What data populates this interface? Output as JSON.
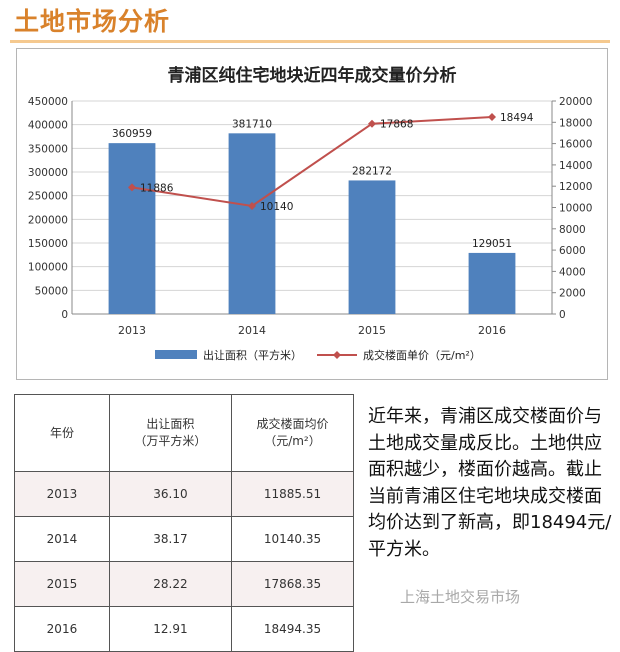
{
  "page": {
    "title": "土地市场分析",
    "note": "近年来，青浦区成交楼面价与土地成交量成反比。土地供应面积越少，楼面价越高。截止当前青浦区住宅地块成交楼面均价达到了新高，即18494元/平方米。",
    "watermark": "上海土地交易市场"
  },
  "chart_data": {
    "type": "bar",
    "title": "青浦区纯住宅地块近四年成交量价分析",
    "categories": [
      "2013",
      "2014",
      "2015",
      "2016"
    ],
    "series": [
      {
        "name": "出让面积（平方米）",
        "type": "bar",
        "axis": "left",
        "color": "#4f81bd",
        "values": [
          360959,
          381710,
          282172,
          129051
        ],
        "labels": [
          "360959",
          "381710",
          "282172",
          "129051"
        ]
      },
      {
        "name": "成交楼面单价（元/m²）",
        "type": "line",
        "axis": "right",
        "color": "#c0504d",
        "values": [
          11886,
          10140,
          17868,
          18494
        ],
        "labels": [
          "11886",
          "10140",
          "17868",
          "18494"
        ]
      }
    ],
    "y_left": {
      "min": 0,
      "max": 450000,
      "step": 50000,
      "tick_labels": [
        "0",
        "50000",
        "100000",
        "150000",
        "200000",
        "250000",
        "300000",
        "350000",
        "400000",
        "450000"
      ]
    },
    "y_right": {
      "min": 0,
      "max": 20000,
      "step": 2000,
      "tick_labels": [
        "0",
        "2000",
        "4000",
        "6000",
        "8000",
        "10000",
        "12000",
        "14000",
        "16000",
        "18000",
        "20000"
      ]
    },
    "grid": true,
    "legend_position": "bottom"
  },
  "table": {
    "headers": [
      {
        "lines": [
          "年份"
        ]
      },
      {
        "lines": [
          "出让面积",
          "（万平方米）"
        ]
      },
      {
        "lines": [
          "成交楼面均价",
          "（元/m²）"
        ]
      }
    ],
    "rows": [
      [
        "2013",
        "36.10",
        "11885.51"
      ],
      [
        "2014",
        "38.17",
        "10140.35"
      ],
      [
        "2015",
        "28.22",
        "17868.35"
      ],
      [
        "2016",
        "12.91",
        "18494.35"
      ]
    ]
  }
}
